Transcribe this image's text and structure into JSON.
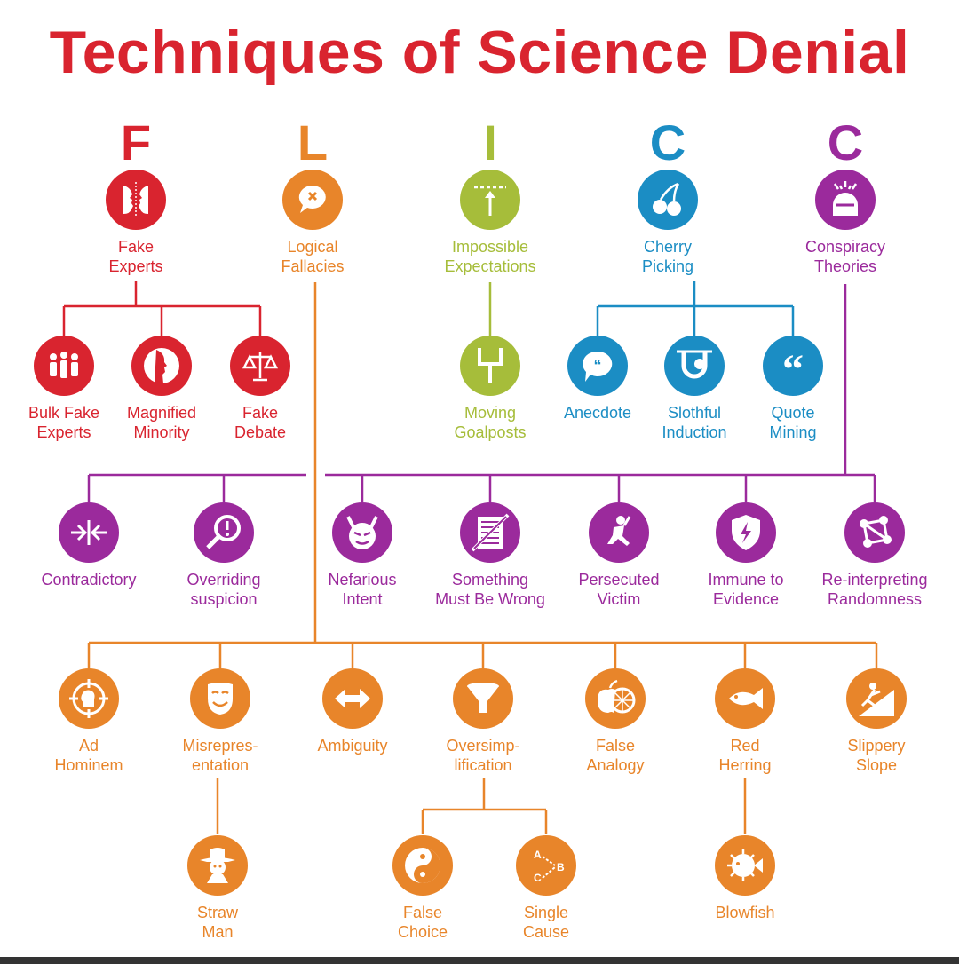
{
  "title": "Techniques of Science Denial",
  "colors": {
    "red": "#d9242f",
    "orange": "#e8852a",
    "green": "#a6bd3a",
    "blue": "#1b8dc4",
    "purple": "#9b2a9c"
  },
  "letters": [
    "F",
    "L",
    "I",
    "C",
    "C"
  ],
  "nodes": {
    "fake_experts": "Fake\nExperts",
    "logical_fallacies": "Logical\nFallacies",
    "impossible_expectations": "Impossible\nExpectations",
    "cherry_picking": "Cherry\nPicking",
    "conspiracy_theories": "Conspiracy\nTheories",
    "bulk_fake_experts": "Bulk Fake\nExperts",
    "magnified_minority": "Magnified\nMinority",
    "fake_debate": "Fake\nDebate",
    "moving_goalposts": "Moving\nGoalposts",
    "anecdote": "Anecdote",
    "slothful_induction": "Slothful\nInduction",
    "quote_mining": "Quote\nMining",
    "contradictory": "Contradictory",
    "overriding_suspicion": "Overriding\nsuspicion",
    "nefarious_intent": "Nefarious\nIntent",
    "something_must_be_wrong": "Something\nMust Be Wrong",
    "persecuted_victim": "Persecuted\nVictim",
    "immune_to_evidence": "Immune to\nEvidence",
    "reinterpreting_randomness": "Re-interpreting\nRandomness",
    "ad_hominem": "Ad\nHominem",
    "misrepresentation": "Misrepres-\nentation",
    "ambiguity": "Ambiguity",
    "oversimplification": "Oversimp-\nlification",
    "false_analogy": "False\nAnalogy",
    "red_herring": "Red\nHerring",
    "slippery_slope": "Slippery\nSlope",
    "straw_man": "Straw\nMan",
    "false_choice": "False\nChoice",
    "single_cause": "Single\nCause",
    "blowfish": "Blowfish"
  },
  "icons": {
    "fake_experts": "two-faces-icon",
    "logical_fallacies": "speech-x-icon",
    "impossible_expectations": "bar-arrow-icon",
    "cherry_picking": "cherry-icon",
    "conspiracy_theories": "head-sparks-icon",
    "bulk_fake_experts": "crowd-icon",
    "magnified_minority": "face-profile-icon",
    "fake_debate": "scales-icon",
    "moving_goalposts": "goalpost-icon",
    "anecdote": "speech-quote-icon",
    "slothful_induction": "sloth-icon",
    "quote_mining": "quote-marks-icon",
    "contradictory": "arrows-inward-icon",
    "overriding_suspicion": "magnifier-exclaim-icon",
    "nefarious_intent": "devil-icon",
    "something_must_be_wrong": "crossed-document-icon",
    "persecuted_victim": "kneeling-figure-icon",
    "immune_to_evidence": "shield-bolt-icon",
    "reinterpreting_randomness": "network-icon",
    "ad_hominem": "target-head-icon",
    "misrepresentation": "mask-icon",
    "ambiguity": "double-arrow-icon",
    "oversimplification": "funnel-icon",
    "false_analogy": "apple-orange-icon",
    "red_herring": "fish-icon",
    "slippery_slope": "falling-figure-icon",
    "straw_man": "scarecrow-icon",
    "false_choice": "yin-yang-icon",
    "single_cause": "abc-arrows-icon",
    "blowfish": "blowfish-icon"
  }
}
